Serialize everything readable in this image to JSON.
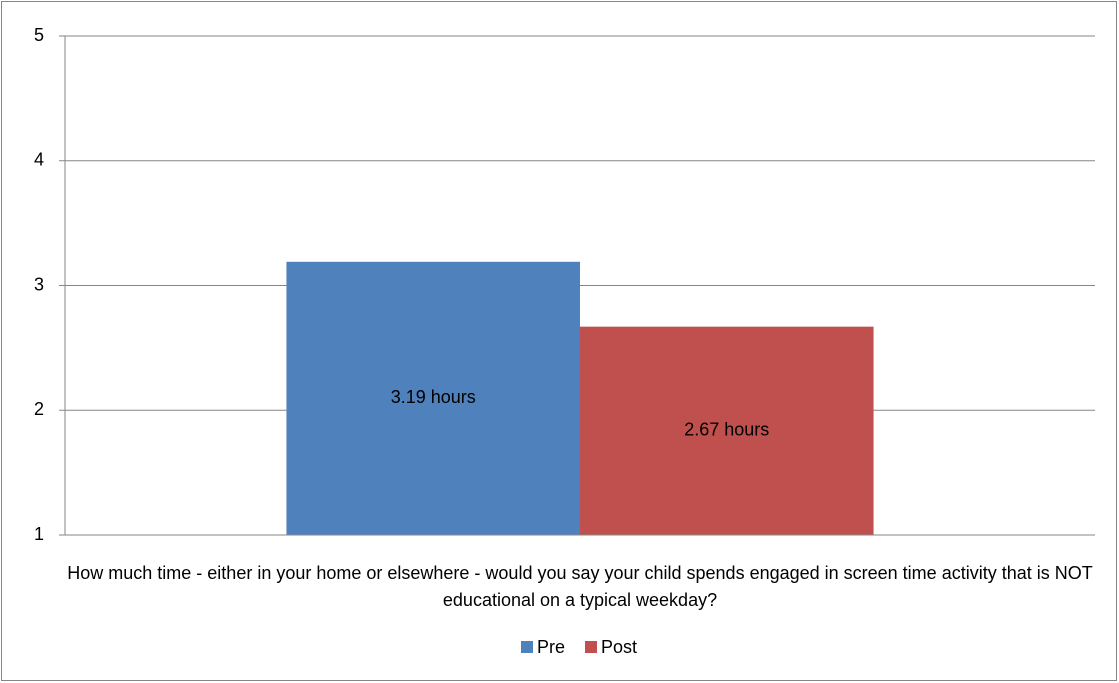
{
  "chart_data": {
    "type": "bar",
    "categories": [
      "How much time - either in your home or elsewhere - would you say your child spends engaged in screen time activity that is NOT educational on a typical weekday?"
    ],
    "series": [
      {
        "name": "Pre",
        "color": "#4f81bd",
        "values": [
          3.19
        ],
        "value_labels": [
          "3.19 hours"
        ]
      },
      {
        "name": "Post",
        "color": "#c0504d",
        "values": [
          2.67
        ],
        "value_labels": [
          "2.67 hours"
        ]
      }
    ],
    "ylim": [
      1,
      5
    ],
    "yticks": [
      1,
      2,
      3,
      4,
      5
    ],
    "grid": true,
    "legend": "bottom"
  }
}
